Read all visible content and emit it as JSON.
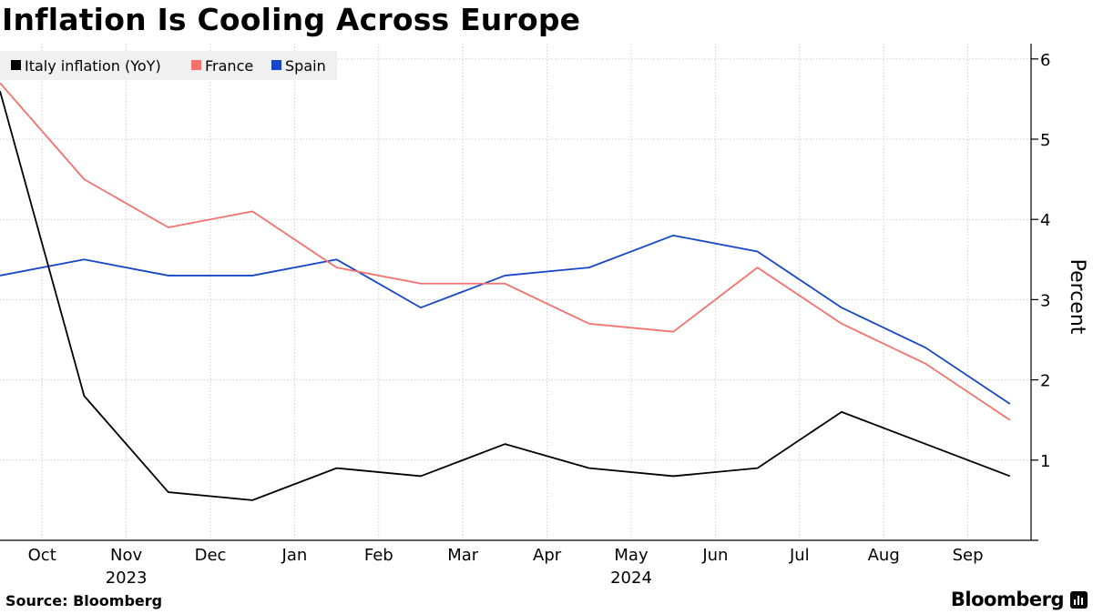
{
  "chart_data": {
    "type": "line",
    "title": "Inflation Is Cooling Across Europe",
    "ylabel": "Percent",
    "ylim": [
      0,
      6
    ],
    "yticks": [
      1,
      2,
      3,
      4,
      5,
      6
    ],
    "grid": true,
    "legend_position": "top-left",
    "x": [
      "2023-09",
      "2023-10",
      "2023-11",
      "2023-12",
      "2024-01",
      "2024-02",
      "2024-03",
      "2024-04",
      "2024-05",
      "2024-06",
      "2024-07",
      "2024-08",
      "2024-09"
    ],
    "month_labels": [
      "Oct",
      "Nov",
      "Dec",
      "Jan",
      "Feb",
      "Mar",
      "Apr",
      "May",
      "Jun",
      "Jul",
      "Aug",
      "Sep"
    ],
    "year_labels": [
      "2023",
      "2024"
    ],
    "series": [
      {
        "name": "Italy inflation (YoY)",
        "color": "#000000",
        "values": [
          5.6,
          1.8,
          0.6,
          0.5,
          0.9,
          0.8,
          1.2,
          0.9,
          0.8,
          0.9,
          1.6,
          1.2,
          0.8
        ]
      },
      {
        "name": "France",
        "color": "#f4726b",
        "values": [
          5.7,
          4.5,
          3.9,
          4.1,
          3.4,
          3.2,
          3.2,
          2.7,
          2.6,
          3.4,
          2.7,
          2.2,
          1.5
        ]
      },
      {
        "name": "Spain",
        "color": "#1547c8",
        "values": [
          3.3,
          3.5,
          3.3,
          3.3,
          3.5,
          2.9,
          3.3,
          3.4,
          3.8,
          3.6,
          2.9,
          2.4,
          1.7
        ]
      }
    ]
  },
  "footer": {
    "source": "Source: Bloomberg",
    "brand": "Bloomberg"
  }
}
